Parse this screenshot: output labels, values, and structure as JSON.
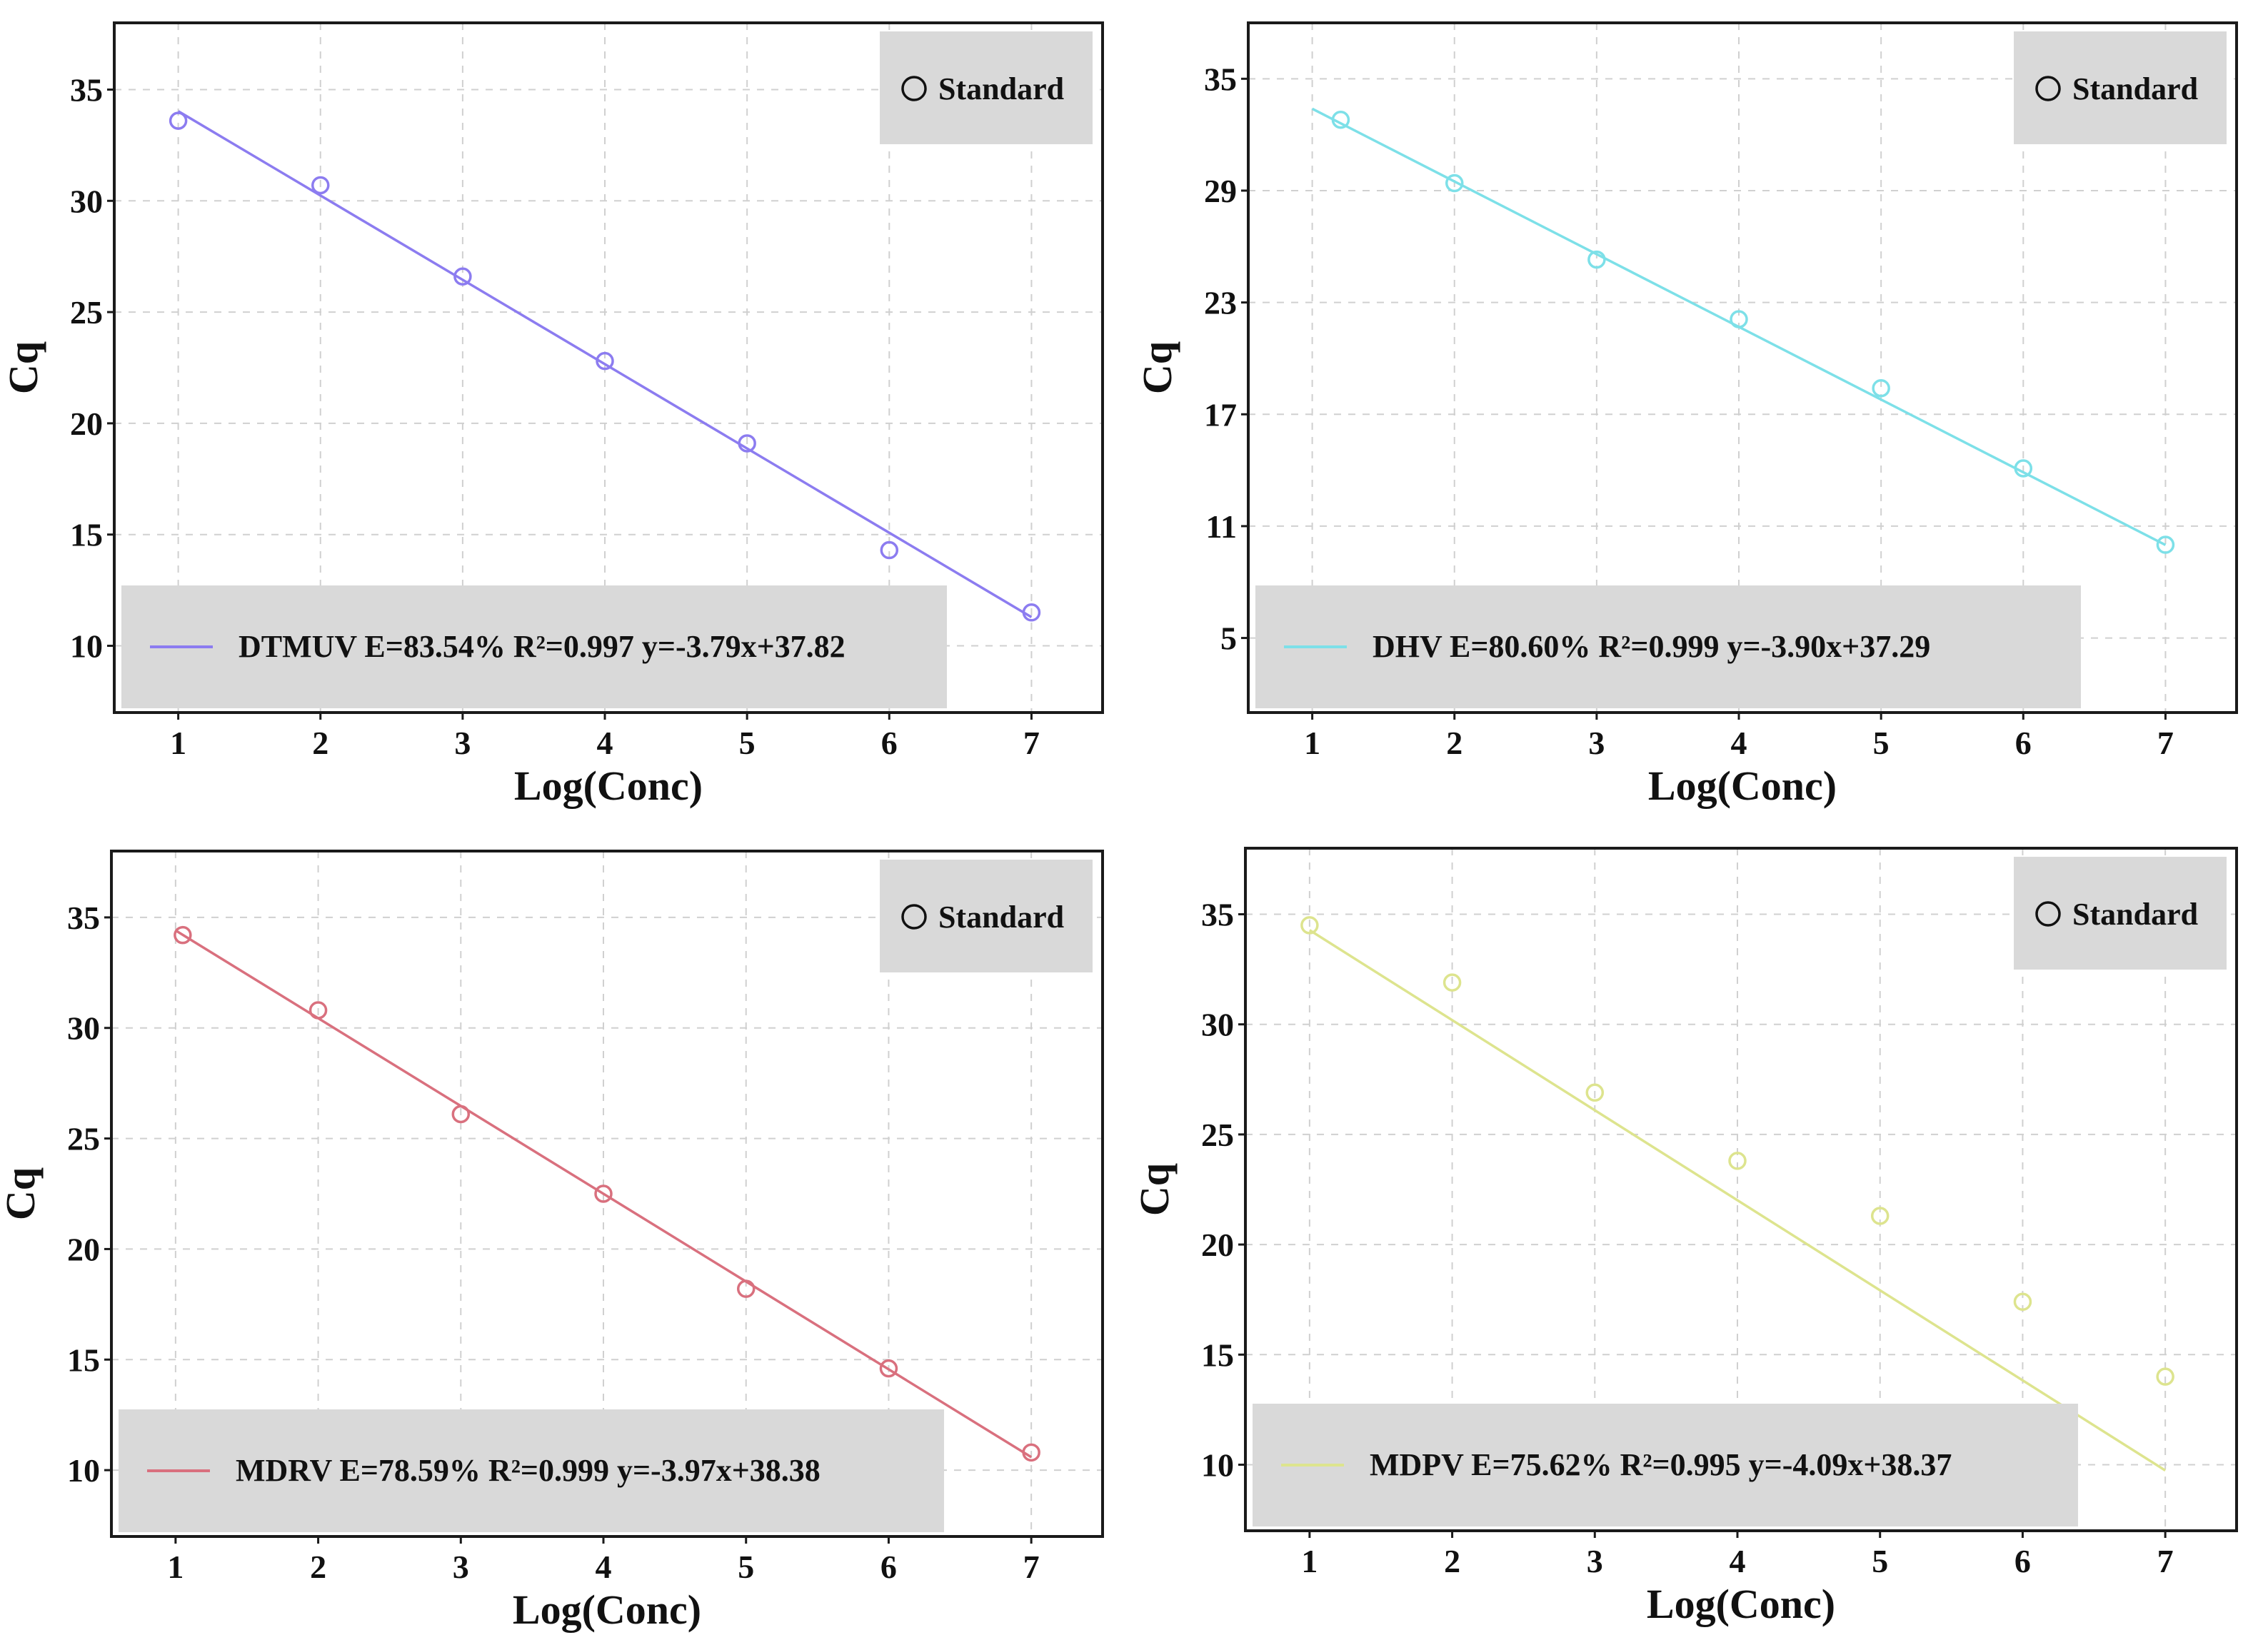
{
  "chart_data": [
    {
      "type": "scatter",
      "name": "DTMUV",
      "color": "#8c7cf0",
      "xlabel": "Log(Conc)",
      "ylabel": "Cq",
      "xlim": [
        0.55,
        7.5
      ],
      "ylim": [
        7,
        38
      ],
      "xticks": [
        1,
        2,
        3,
        4,
        5,
        6,
        7
      ],
      "yticks": [
        10,
        15,
        20,
        25,
        30,
        35
      ],
      "grid": true,
      "points_label": "Standard",
      "points": {
        "x": [
          1,
          2,
          3,
          4,
          5,
          6,
          7
        ],
        "y": [
          33.6,
          30.7,
          26.6,
          22.8,
          19.1,
          14.3,
          11.5
        ]
      },
      "fit": {
        "slope": -3.79,
        "intercept": 37.82,
        "x_range": [
          1,
          7
        ]
      },
      "legend_label": "DTMUV E=83.54% R²=0.997 y=-3.79x+37.82"
    },
    {
      "type": "scatter",
      "name": "DHV",
      "color": "#7de0e8",
      "xlabel": "Log(Conc)",
      "ylabel": "Cq",
      "xlim": [
        0.55,
        7.5
      ],
      "ylim": [
        1,
        38
      ],
      "xticks": [
        1,
        2,
        3,
        4,
        5,
        6,
        7
      ],
      "yticks": [
        5,
        11,
        17,
        23,
        29,
        35
      ],
      "grid": true,
      "points_label": "Standard",
      "points": {
        "x": [
          1.2,
          2,
          3,
          4,
          5,
          6,
          7
        ],
        "y": [
          32.8,
          29.4,
          25.3,
          22.1,
          18.4,
          14.1,
          10.0
        ]
      },
      "fit": {
        "slope": -3.9,
        "intercept": 37.29,
        "x_range": [
          1,
          7
        ]
      },
      "legend_label": "DHV E=80.60% R²=0.999 y=-3.90x+37.29"
    },
    {
      "type": "scatter",
      "name": "MDRV",
      "color": "#d9707e",
      "xlabel": "Log(Conc)",
      "ylabel": "Cq",
      "xlim": [
        0.55,
        7.5
      ],
      "ylim": [
        7,
        38
      ],
      "xticks": [
        1,
        2,
        3,
        4,
        5,
        6,
        7
      ],
      "yticks": [
        10,
        15,
        20,
        25,
        30,
        35
      ],
      "grid": true,
      "points_label": "Standard",
      "points": {
        "x": [
          1.05,
          2,
          3,
          4,
          5,
          6,
          7
        ],
        "y": [
          34.2,
          30.8,
          26.1,
          22.5,
          18.2,
          14.6,
          10.8
        ]
      },
      "fit": {
        "slope": -3.97,
        "intercept": 38.38,
        "x_range": [
          1,
          7
        ]
      },
      "legend_label": "MDRV E=78.59% R²=0.999 y=-3.97x+38.38"
    },
    {
      "type": "scatter",
      "name": "MDPV",
      "color": "#dde48e",
      "xlabel": "Log(Conc)",
      "ylabel": "Cq",
      "xlim": [
        0.55,
        7.5
      ],
      "ylim": [
        7,
        38
      ],
      "xticks": [
        1,
        2,
        3,
        4,
        5,
        6,
        7
      ],
      "yticks": [
        10,
        15,
        20,
        25,
        30,
        35
      ],
      "grid": true,
      "points_label": "Standard",
      "points": {
        "x": [
          1,
          2,
          3,
          4,
          5,
          6,
          7
        ],
        "y": [
          34.5,
          31.9,
          26.9,
          23.8,
          21.3,
          17.4,
          14.0
        ]
      },
      "fit": {
        "slope": -4.09,
        "intercept": 38.37,
        "x_range": [
          1,
          7
        ]
      },
      "legend_label": "MDPV E=75.62% R²=0.995 y=-4.09x+38.37"
    }
  ]
}
